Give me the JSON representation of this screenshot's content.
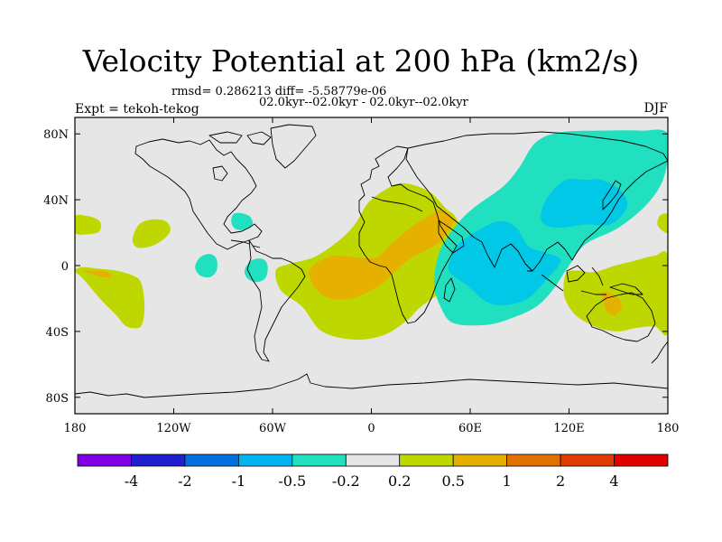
{
  "title": "Velocity Potential at 200 hPa (km2/s)",
  "stats_line": "rmsd= 0.286213 diff= -5.58779e-06",
  "period_line": "02.0kyr--02.0kyr - 02.0kyr--02.0kyr",
  "experiment": "Expt = tekoh-tekog",
  "season": "DJF",
  "colors": {
    "land_outline": "#000000",
    "background": "#e6e6e6"
  },
  "map_data": {
    "projection": "cylindrical-equidistant",
    "lon_range": [
      -180,
      180
    ],
    "lat_range": [
      -90,
      90
    ],
    "lon_ticks": [
      {
        "value": -180,
        "label": "180"
      },
      {
        "value": -120,
        "label": "120W"
      },
      {
        "value": -60,
        "label": "60W"
      },
      {
        "value": 0,
        "label": "0"
      },
      {
        "value": 60,
        "label": "60E"
      },
      {
        "value": 120,
        "label": "120E"
      },
      {
        "value": 180,
        "label": "180"
      }
    ],
    "lat_ticks": [
      {
        "value": 80,
        "label": "80N"
      },
      {
        "value": 40,
        "label": "40N"
      },
      {
        "value": 0,
        "label": "0"
      },
      {
        "value": -40,
        "label": "40S"
      },
      {
        "value": -80,
        "label": "80S"
      }
    ],
    "fields": [
      {
        "name": "pacific-west-positive",
        "level": 0.2,
        "color": "#bfd700",
        "poly": [
          [
            -180,
            -3
          ],
          [
            -175,
            -8
          ],
          [
            -170,
            -14
          ],
          [
            -163,
            -22
          ],
          [
            -155,
            -30
          ],
          [
            -150,
            -36
          ],
          [
            -145,
            -38
          ],
          [
            -140,
            -37
          ],
          [
            -138,
            -30
          ],
          [
            -138,
            -20
          ],
          [
            -140,
            -10
          ],
          [
            -145,
            -6
          ],
          [
            -155,
            -3
          ],
          [
            -165,
            -2
          ],
          [
            -175,
            -1
          ]
        ]
      },
      {
        "name": "pacific-west-orange",
        "level": 0.5,
        "color": "#e6b000",
        "poly": [
          [
            -175,
            -3
          ],
          [
            -170,
            -5
          ],
          [
            -163,
            -7
          ],
          [
            -158,
            -7
          ],
          [
            -160,
            -4
          ],
          [
            -168,
            -3
          ]
        ]
      },
      {
        "name": "hawaii-positive",
        "level": 0.2,
        "color": "#bfd700",
        "poly": [
          [
            -145,
            16
          ],
          [
            -141,
            25
          ],
          [
            -133,
            28
          ],
          [
            -125,
            27
          ],
          [
            -122,
            22
          ],
          [
            -125,
            17
          ],
          [
            -133,
            12
          ],
          [
            -142,
            11
          ]
        ]
      },
      {
        "name": "dateline-north-positive",
        "level": 0.2,
        "color": "#bfd700",
        "poly": [
          [
            -180,
            30
          ],
          [
            -172,
            30
          ],
          [
            -165,
            27
          ],
          [
            -165,
            21
          ],
          [
            -172,
            19
          ],
          [
            -180,
            20
          ]
        ]
      },
      {
        "name": "caribbean-negative",
        "level": -0.2,
        "color": "#20e0c0",
        "poly": [
          [
            -84,
            31
          ],
          [
            -80,
            32
          ],
          [
            -74,
            30
          ],
          [
            -72,
            25
          ],
          [
            -76,
            22
          ],
          [
            -82,
            22
          ],
          [
            -85,
            26
          ]
        ]
      },
      {
        "name": "east-pacific-negative",
        "level": -0.2,
        "color": "#20e0c0",
        "poly": [
          [
            -107,
            -1
          ],
          [
            -104,
            5
          ],
          [
            -98,
            7
          ],
          [
            -94,
            4
          ],
          [
            -94,
            -3
          ],
          [
            -98,
            -7
          ],
          [
            -104,
            -6
          ]
        ]
      },
      {
        "name": "amazon-negative",
        "level": -0.2,
        "color": "#20e0c0",
        "poly": [
          [
            -77,
            -3
          ],
          [
            -73,
            3
          ],
          [
            -66,
            4
          ],
          [
            -63,
            0
          ],
          [
            -64,
            -7
          ],
          [
            -69,
            -10
          ],
          [
            -75,
            -8
          ]
        ]
      },
      {
        "name": "atlantic-africa-positive",
        "level": 0.2,
        "color": "#bfd700",
        "poly": [
          [
            -58,
            -3
          ],
          [
            -55,
            -15
          ],
          [
            -42,
            -25
          ],
          [
            -30,
            -40
          ],
          [
            -10,
            -45
          ],
          [
            8,
            -42
          ],
          [
            22,
            -33
          ],
          [
            30,
            -25
          ],
          [
            48,
            -12
          ],
          [
            56,
            -2
          ],
          [
            58,
            8
          ],
          [
            52,
            28
          ],
          [
            45,
            35
          ],
          [
            35,
            45
          ],
          [
            20,
            50
          ],
          [
            10,
            47
          ],
          [
            -2,
            38
          ],
          [
            -10,
            25
          ],
          [
            -20,
            15
          ],
          [
            -35,
            5
          ],
          [
            -50,
            1
          ]
        ]
      },
      {
        "name": "africa-orange",
        "level": 0.5,
        "color": "#e6b000",
        "poly": [
          [
            -38,
            -5
          ],
          [
            -33,
            2
          ],
          [
            -22,
            6
          ],
          [
            -10,
            5
          ],
          [
            3,
            5
          ],
          [
            12,
            13
          ],
          [
            20,
            20
          ],
          [
            28,
            26
          ],
          [
            35,
            30
          ],
          [
            42,
            34
          ],
          [
            50,
            28
          ],
          [
            46,
            20
          ],
          [
            40,
            13
          ],
          [
            25,
            5
          ],
          [
            15,
            -3
          ],
          [
            8,
            -10
          ],
          [
            0,
            -15
          ],
          [
            -12,
            -20
          ],
          [
            -25,
            -20
          ],
          [
            -33,
            -15
          ]
        ]
      },
      {
        "name": "maritime-continent-negative",
        "level": -0.2,
        "color": "#20e0c0",
        "poly": [
          [
            38,
            -10
          ],
          [
            42,
            10
          ],
          [
            52,
            25
          ],
          [
            62,
            35
          ],
          [
            80,
            48
          ],
          [
            90,
            60
          ],
          [
            100,
            75
          ],
          [
            115,
            81
          ],
          [
            140,
            82
          ],
          [
            163,
            82
          ],
          [
            180,
            80
          ],
          [
            178,
            55
          ],
          [
            168,
            38
          ],
          [
            150,
            23
          ],
          [
            130,
            13
          ],
          [
            120,
            0
          ],
          [
            110,
            -15
          ],
          [
            100,
            -25
          ],
          [
            85,
            -32
          ],
          [
            70,
            -36
          ],
          [
            50,
            -35
          ],
          [
            42,
            -25
          ]
        ]
      },
      {
        "name": "indian-ocean-core",
        "level": -0.5,
        "color": "#00c8e6",
        "poly": [
          [
            47,
            -3
          ],
          [
            50,
            8
          ],
          [
            55,
            15
          ],
          [
            66,
            22
          ],
          [
            78,
            27
          ],
          [
            88,
            23
          ],
          [
            95,
            12
          ],
          [
            105,
            8
          ],
          [
            115,
            3
          ],
          [
            105,
            -10
          ],
          [
            95,
            -20
          ],
          [
            82,
            -24
          ],
          [
            70,
            -22
          ],
          [
            58,
            -12
          ]
        ]
      },
      {
        "name": "east-asia-core",
        "level": -0.5,
        "color": "#00c8e6",
        "poly": [
          [
            103,
            32
          ],
          [
            108,
            43
          ],
          [
            118,
            52
          ],
          [
            130,
            52
          ],
          [
            140,
            52
          ],
          [
            152,
            45
          ],
          [
            155,
            35
          ],
          [
            145,
            25
          ],
          [
            130,
            25
          ],
          [
            115,
            23
          ],
          [
            105,
            25
          ]
        ]
      },
      {
        "name": "australia-positive",
        "level": 0.2,
        "color": "#bfd700",
        "poly": [
          [
            118,
            -5
          ],
          [
            125,
            -3
          ],
          [
            135,
            -4
          ],
          [
            148,
            0
          ],
          [
            160,
            3
          ],
          [
            172,
            6
          ],
          [
            180,
            5
          ],
          [
            180,
            -40
          ],
          [
            172,
            -37
          ],
          [
            160,
            -38
          ],
          [
            150,
            -40
          ],
          [
            138,
            -38
          ],
          [
            128,
            -33
          ],
          [
            122,
            -28
          ],
          [
            117,
            -18
          ]
        ]
      },
      {
        "name": "australia-orange",
        "level": 0.5,
        "color": "#e6b000",
        "poly": [
          [
            140,
            -16
          ],
          [
            148,
            -18
          ],
          [
            152,
            -24
          ],
          [
            148,
            -30
          ],
          [
            143,
            -28
          ],
          [
            141,
            -22
          ]
        ]
      },
      {
        "name": "dateline-east-positive",
        "level": 0.2,
        "color": "#bfd700",
        "poly": [
          [
            180,
            31
          ],
          [
            175,
            30
          ],
          [
            174,
            24
          ],
          [
            180,
            20
          ]
        ]
      }
    ]
  },
  "colorbar": {
    "colors": [
      "#8000e6",
      "#2020d0",
      "#0070e0",
      "#00b4f0",
      "#20e0c0",
      "#e6e6e6",
      "#bfd700",
      "#e6b000",
      "#e07000",
      "#e03c00",
      "#e00000"
    ],
    "labels": [
      "-4",
      "-2",
      "-1",
      "-0.5",
      "-0.2",
      "0.2",
      "0.5",
      "1",
      "2",
      "4"
    ]
  }
}
